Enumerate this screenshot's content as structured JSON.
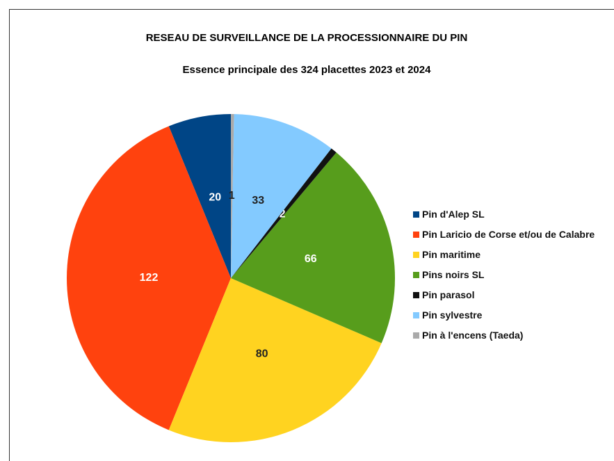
{
  "chart_data": {
    "type": "pie",
    "title": "RESEAU DE SURVEILLANCE DE LA PROCESSIONNAIRE DU PIN",
    "subtitle": "Essence principale des 324 placettes 2023 et 2024",
    "categories": [
      "Pin d'Alep SL",
      "Pin Laricio de Corse et/ou de Calabre",
      "Pin maritime",
      "Pins noirs SL",
      "Pin parasol",
      "Pin sylvestre",
      "Pin à l'encens (Taeda)"
    ],
    "values": [
      20,
      122,
      80,
      66,
      2,
      33,
      1
    ],
    "colors": [
      "#004586",
      "#ff420e",
      "#ffd320",
      "#579d1c",
      "#111111",
      "#83caff",
      "#aaaaaa"
    ]
  }
}
